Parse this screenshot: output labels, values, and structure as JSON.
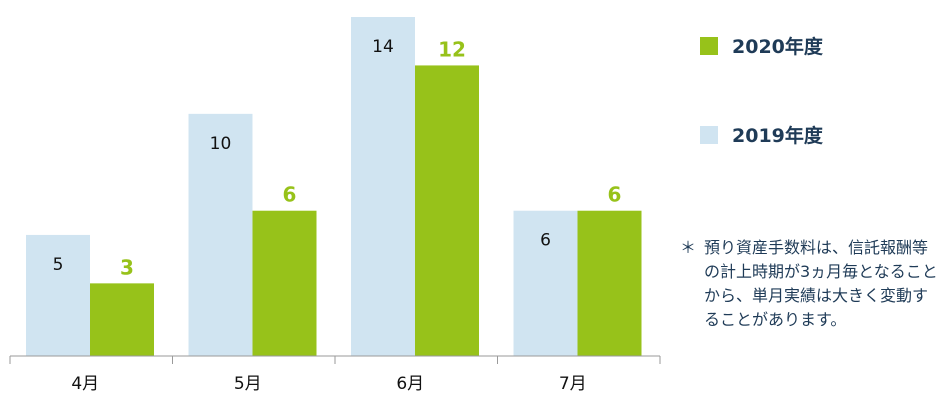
{
  "chart_data": {
    "type": "bar",
    "categories": [
      "4月",
      "5月",
      "6月",
      "7月"
    ],
    "series": [
      {
        "name": "2019年度",
        "values": [
          5,
          10,
          14,
          6
        ],
        "color": "#d0e4f1",
        "label_color": "#111111"
      },
      {
        "name": "2020年度",
        "values": [
          3,
          6,
          12,
          6
        ],
        "color": "#97c21a",
        "label_color": "#97c21a"
      }
    ],
    "ylim": [
      0,
      14
    ],
    "grid": false,
    "legend": "right"
  },
  "legend": [
    {
      "label": "2020年度",
      "color": "#97c21a",
      "text_color": "#1f3b57"
    },
    {
      "label": "2019年度",
      "color": "#d0e4f1",
      "text_color": "#1f3b57"
    }
  ],
  "note": {
    "mark": "＊",
    "text": "預り資産手数料は、信託報酬等の計上時期が3ヵ月毎となることから、単月実績は大きく変動することがあります。"
  }
}
